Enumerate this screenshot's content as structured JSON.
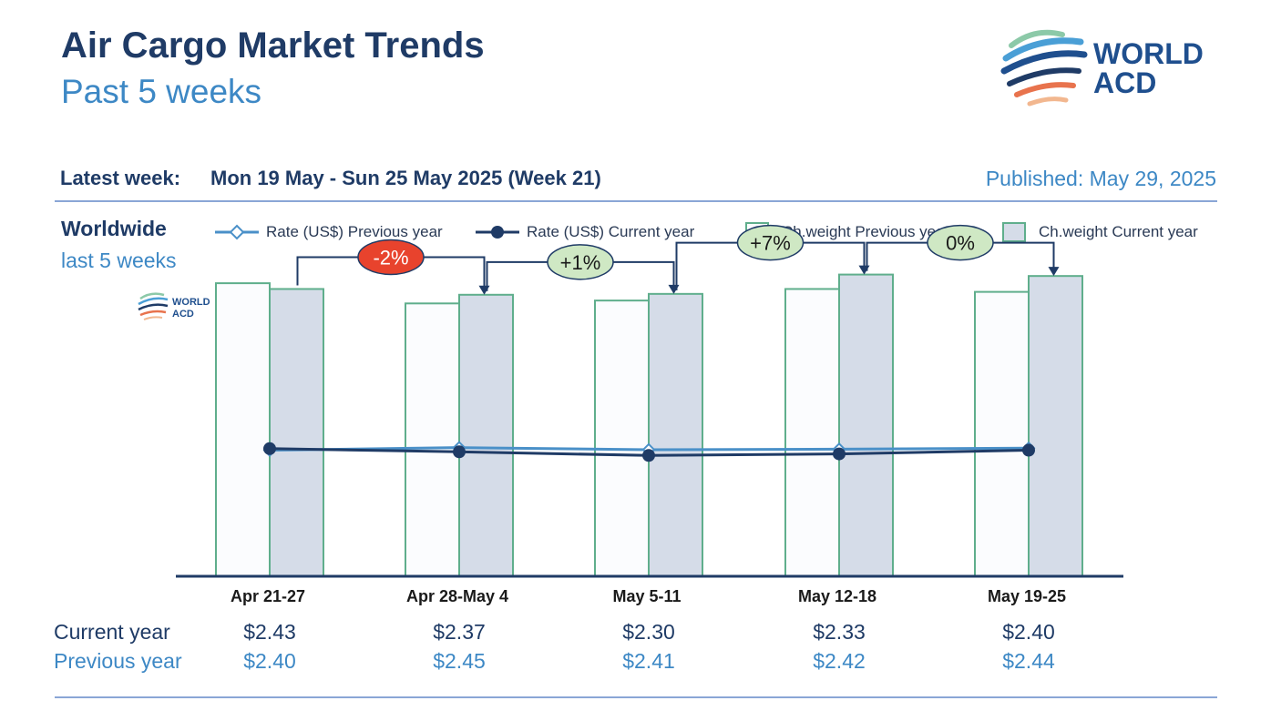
{
  "header": {
    "title": "Air Cargo Market Trends",
    "subtitle": "Past 5 weeks",
    "logo": {
      "line1": "WORLD",
      "line2": "ACD"
    }
  },
  "info": {
    "latest_label": "Latest week:",
    "latest_range": "Mon 19 May - Sun 25 May 2025 (Week 21)",
    "published": "Published: May 29, 2025"
  },
  "region": {
    "name": "Worldwide",
    "period": "last 5 weeks"
  },
  "legend": [
    {
      "label": "Rate (US$) Previous year",
      "kind": "line-diamond",
      "color": "#4a90c8"
    },
    {
      "label": "Rate (US$) Current year",
      "kind": "line-dot",
      "color": "#1f3b66"
    },
    {
      "label": "Ch.weight Previous year",
      "kind": "bar",
      "color": "#fbfcfe"
    },
    {
      "label": "Ch.weight Current year",
      "kind": "bar",
      "color": "#d5dce8"
    }
  ],
  "chart_data": {
    "type": "bar",
    "categories": [
      "Apr 21-27",
      "Apr 28-May 4",
      "May 5-11",
      "May 12-18",
      "May 19-25"
    ],
    "series": [
      {
        "name": "Ch.weight Previous year",
        "type": "bar",
        "values": [
          101.5,
          94.5,
          95.5,
          99.5,
          98.5
        ],
        "fill": "#fbfcfe",
        "stroke": "#5fae8c"
      },
      {
        "name": "Ch.weight Current year",
        "type": "bar",
        "values": [
          99.5,
          97.5,
          97.8,
          104.5,
          104.0
        ],
        "fill": "#d5dce8",
        "stroke": "#5fae8c"
      },
      {
        "name": "Rate (US$) Previous year",
        "type": "line",
        "values": [
          2.4,
          2.45,
          2.41,
          2.42,
          2.44
        ],
        "color": "#4a90c8"
      },
      {
        "name": "Rate (US$) Current year",
        "type": "line",
        "values": [
          2.43,
          2.37,
          2.3,
          2.33,
          2.4
        ],
        "color": "#1f3b66"
      }
    ],
    "week_changes": [
      {
        "label": "-2%",
        "from": 0,
        "to": 1,
        "fill": "#e8432d",
        "text_color": "#ffffff"
      },
      {
        "label": "+1%",
        "from": 1,
        "to": 2,
        "fill": "#cfe8c4",
        "text_color": "#1a1a1a"
      },
      {
        "label": "+7%",
        "from": 2,
        "to": 3,
        "fill": "#cfe8c4",
        "text_color": "#1a1a1a"
      },
      {
        "label": "0%",
        "from": 3,
        "to": 4,
        "fill": "#cfe8c4",
        "text_color": "#1a1a1a"
      }
    ],
    "bar_ylim": [
      0,
      105
    ],
    "rate_ylim": [
      0,
      5.2
    ],
    "grid": false,
    "legend_position": "top"
  },
  "table": {
    "current_label": "Current year",
    "previous_label": "Previous year",
    "current": [
      "$2.43",
      "$2.37",
      "$2.30",
      "$2.33",
      "$2.40"
    ],
    "previous": [
      "$2.40",
      "$2.45",
      "$2.41",
      "$2.42",
      "$2.44"
    ]
  },
  "colors": {
    "navy": "#1f3b66",
    "light_blue": "#3d88c5",
    "bar_border": "#5fae8c",
    "negative": "#e8432d",
    "positive": "#cfe8c4"
  }
}
